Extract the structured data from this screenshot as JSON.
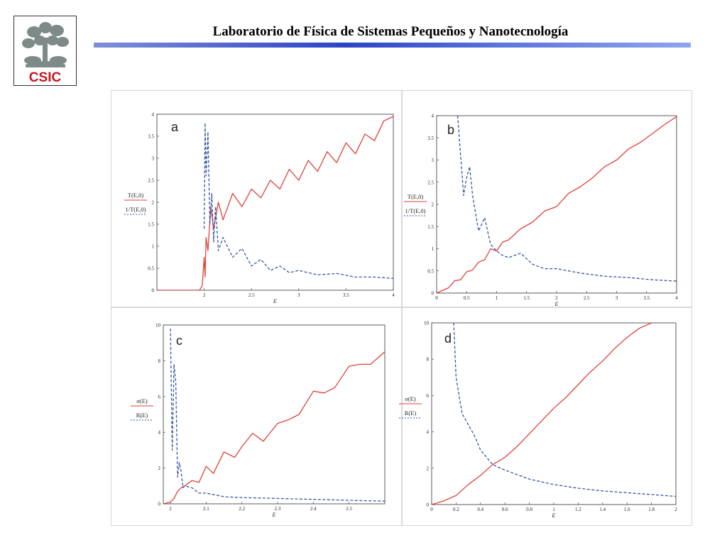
{
  "header": {
    "title": "Laboratorio de Física de Sistemas Pequeños y Nanotecnología",
    "logo_text": "CSIC"
  },
  "colors": {
    "red": "#e0413a",
    "blue": "#3556a8",
    "rule": "#2b44c6"
  },
  "chart_data": [
    {
      "type": "line",
      "panel_label": "a",
      "xlabel": "E",
      "xlim": [
        1.5,
        4
      ],
      "ylim": [
        0,
        4
      ],
      "xticks": [
        "2",
        "2.5",
        "3",
        "3.5",
        "4"
      ],
      "yticks": [
        "0",
        "0.5",
        "1",
        "1.5",
        "2",
        "2.5",
        "3",
        "3.5",
        "4"
      ],
      "legend": [
        "T(E,0)",
        "1/T(E,0)"
      ],
      "series": [
        {
          "style": "solid",
          "color": "#e0413a",
          "x": [
            1.5,
            1.95,
            1.98,
            2.0,
            2.01,
            2.02,
            2.04,
            2.07,
            2.1,
            2.15,
            2.2,
            2.3,
            2.4,
            2.5,
            2.6,
            2.7,
            2.8,
            2.9,
            3.0,
            3.1,
            3.2,
            3.3,
            3.4,
            3.5,
            3.6,
            3.7,
            3.8,
            3.9,
            4.0
          ],
          "y": [
            0,
            0,
            0.1,
            0.75,
            0.3,
            1.2,
            0.9,
            1.9,
            1.4,
            2.0,
            1.6,
            2.2,
            1.9,
            2.3,
            2.1,
            2.5,
            2.3,
            2.75,
            2.5,
            2.95,
            2.7,
            3.15,
            2.9,
            3.35,
            3.1,
            3.55,
            3.4,
            3.85,
            3.95
          ]
        },
        {
          "style": "dashed",
          "color": "#3556a8",
          "x": [
            2.0,
            2.01,
            2.02,
            2.04,
            2.06,
            2.08,
            2.1,
            2.12,
            2.15,
            2.2,
            2.3,
            2.4,
            2.5,
            2.6,
            2.7,
            2.8,
            2.9,
            3.0,
            3.2,
            3.4,
            3.6,
            3.8,
            4.0
          ],
          "y": [
            1.4,
            3.8,
            2.6,
            3.6,
            1.5,
            2.2,
            1.1,
            1.9,
            0.9,
            1.2,
            0.75,
            0.95,
            0.55,
            0.7,
            0.45,
            0.55,
            0.4,
            0.45,
            0.35,
            0.38,
            0.3,
            0.3,
            0.27
          ]
        }
      ]
    },
    {
      "type": "line",
      "panel_label": "b",
      "xlabel": "E",
      "xlim": [
        0,
        4
      ],
      "ylim": [
        0,
        4
      ],
      "xticks": [
        "0",
        "0.5",
        "1",
        "1.5",
        "2",
        "2.5",
        "3",
        "3.5",
        "4"
      ],
      "yticks": [
        "0",
        "0.5",
        "1",
        "1.5",
        "2",
        "2.5",
        "3",
        "3.5",
        "4"
      ],
      "legend": [
        "T(E,0)",
        "1/T(E,0)"
      ],
      "series": [
        {
          "style": "solid",
          "color": "#e0413a",
          "x": [
            0,
            0.2,
            0.3,
            0.4,
            0.5,
            0.6,
            0.7,
            0.8,
            0.9,
            1.0,
            1.1,
            1.2,
            1.4,
            1.6,
            1.8,
            2.0,
            2.2,
            2.4,
            2.6,
            2.8,
            3.0,
            3.2,
            3.4,
            3.6,
            3.8,
            4.0
          ],
          "y": [
            0,
            0.12,
            0.28,
            0.3,
            0.48,
            0.52,
            0.7,
            0.75,
            1.0,
            0.95,
            1.15,
            1.2,
            1.45,
            1.6,
            1.85,
            1.95,
            2.25,
            2.4,
            2.6,
            2.85,
            3.0,
            3.25,
            3.4,
            3.6,
            3.8,
            3.98
          ]
        },
        {
          "style": "dashed",
          "color": "#3556a8",
          "x": [
            0.35,
            0.45,
            0.5,
            0.55,
            0.6,
            0.7,
            0.8,
            0.9,
            1.0,
            1.1,
            1.2,
            1.4,
            1.6,
            1.8,
            2.0,
            2.4,
            2.8,
            3.2,
            3.6,
            4.0
          ],
          "y": [
            4.0,
            2.2,
            2.6,
            2.85,
            2.2,
            1.4,
            1.7,
            1.1,
            0.95,
            0.85,
            0.8,
            0.9,
            0.65,
            0.55,
            0.55,
            0.45,
            0.38,
            0.35,
            0.3,
            0.27
          ]
        }
      ]
    },
    {
      "type": "line",
      "panel_label": "c",
      "xlabel": "E",
      "xlim": [
        1.98,
        2.6
      ],
      "ylim": [
        0,
        10
      ],
      "xticks": [
        "2",
        "2.1",
        "2.2",
        "2.3",
        "2.4",
        "2.5"
      ],
      "yticks": [
        "0",
        "2",
        "4",
        "6",
        "8",
        "10"
      ],
      "legend": [
        "σ(E)",
        "R(E)"
      ],
      "series": [
        {
          "style": "solid",
          "color": "#e0413a",
          "x": [
            1.98,
            2.0,
            2.01,
            2.02,
            2.03,
            2.04,
            2.06,
            2.08,
            2.1,
            2.12,
            2.15,
            2.18,
            2.2,
            2.23,
            2.26,
            2.3,
            2.33,
            2.36,
            2.4,
            2.43,
            2.46,
            2.5,
            2.53,
            2.56,
            2.6
          ],
          "y": [
            0,
            0.1,
            0.3,
            0.7,
            0.9,
            1.0,
            1.3,
            1.2,
            2.1,
            1.7,
            2.9,
            2.6,
            3.2,
            3.95,
            3.5,
            4.5,
            4.7,
            5.0,
            6.3,
            6.2,
            6.5,
            7.7,
            7.8,
            7.8,
            8.5
          ]
        },
        {
          "style": "dashed",
          "color": "#3556a8",
          "x": [
            2.0,
            2.005,
            2.01,
            2.015,
            2.02,
            2.025,
            2.03,
            2.035,
            2.04,
            2.06,
            2.08,
            2.1,
            2.15,
            2.2,
            2.3,
            2.4,
            2.5,
            2.6
          ],
          "y": [
            9.8,
            3.0,
            7.8,
            6.8,
            1.5,
            2.3,
            1.8,
            0.9,
            1.0,
            0.9,
            0.6,
            0.6,
            0.4,
            0.35,
            0.3,
            0.25,
            0.2,
            0.15
          ]
        }
      ]
    },
    {
      "type": "line",
      "panel_label": "d",
      "xlabel": "E",
      "xlim": [
        0,
        2
      ],
      "ylim": [
        0,
        10
      ],
      "xticks": [
        "0",
        "0.2",
        "0.4",
        "0.6",
        "0.8",
        "1",
        "1.2",
        "1.4",
        "1.6",
        "1.8",
        "2"
      ],
      "yticks": [
        "0",
        "2",
        "4",
        "6",
        "8",
        "10"
      ],
      "legend": [
        "σ(E)",
        "R(E)"
      ],
      "series": [
        {
          "style": "solid",
          "color": "#e0413a",
          "x": [
            0,
            0.1,
            0.2,
            0.3,
            0.4,
            0.5,
            0.6,
            0.7,
            0.8,
            0.9,
            1.0,
            1.1,
            1.2,
            1.3,
            1.4,
            1.5,
            1.6,
            1.7,
            1.8
          ],
          "y": [
            0,
            0.2,
            0.5,
            1.1,
            1.6,
            2.2,
            2.6,
            3.2,
            3.9,
            4.6,
            5.3,
            5.9,
            6.6,
            7.3,
            7.9,
            8.6,
            9.2,
            9.7,
            10.0
          ]
        },
        {
          "style": "dashed",
          "color": "#3556a8",
          "x": [
            0.18,
            0.2,
            0.25,
            0.3,
            0.35,
            0.4,
            0.5,
            0.6,
            0.8,
            1.0,
            1.2,
            1.4,
            1.6,
            1.8,
            2.0
          ],
          "y": [
            10.0,
            7.0,
            5.0,
            4.4,
            3.8,
            3.0,
            2.2,
            1.9,
            1.4,
            1.1,
            0.9,
            0.75,
            0.65,
            0.55,
            0.45
          ]
        }
      ]
    }
  ]
}
